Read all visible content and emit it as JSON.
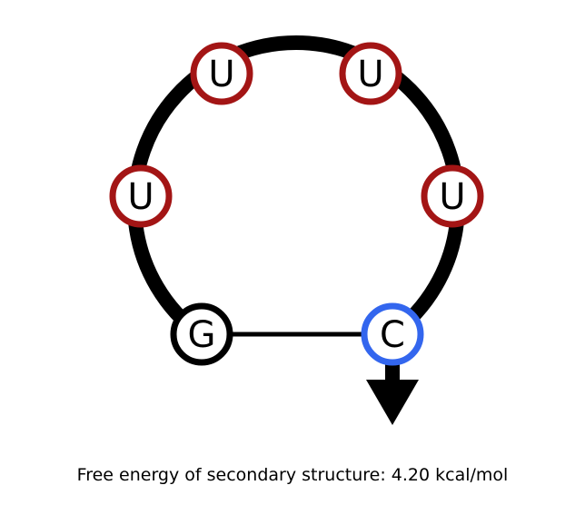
{
  "structure": {
    "nucleotides": [
      {
        "letter": "G",
        "color": "#000000"
      },
      {
        "letter": "U",
        "color": "#a31515"
      },
      {
        "letter": "U",
        "color": "#a31515"
      },
      {
        "letter": "U",
        "color": "#a31515"
      },
      {
        "letter": "U",
        "color": "#a31515"
      },
      {
        "letter": "C",
        "color": "#3366ee"
      }
    ],
    "base_pairs": [
      [
        "G",
        "C"
      ]
    ],
    "backbone_color": "#000000",
    "direction": "3-prime-arrow-at-C"
  },
  "caption": "Free energy of secondary structure: 4.20 kcal/mol"
}
